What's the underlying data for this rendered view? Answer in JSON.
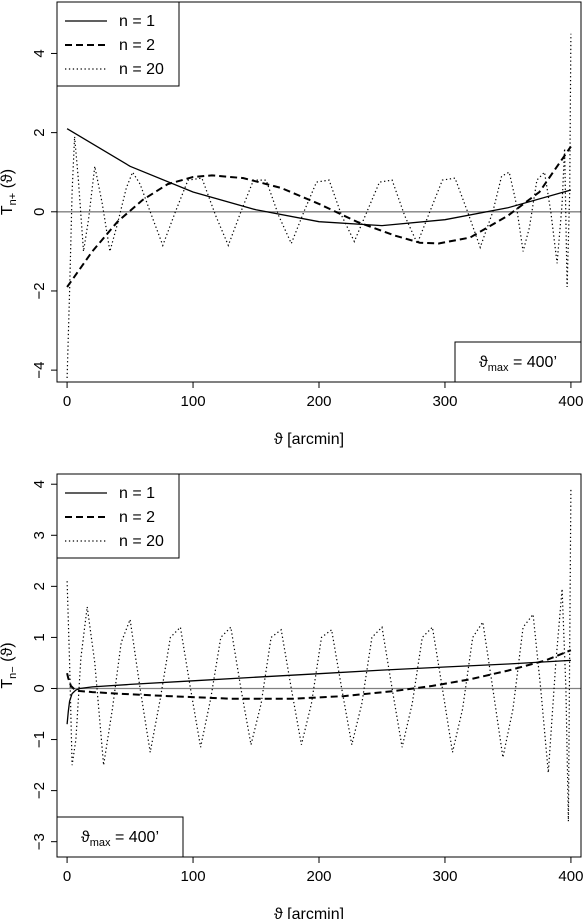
{
  "chart_data": [
    {
      "type": "line",
      "id": "top",
      "xlabel": "ϑ [arcmin]",
      "ylabel_main": "T",
      "ylabel_sub": "n+",
      "ylabel_arg": " (ϑ)",
      "xlim": [
        -8,
        408
      ],
      "ylim": [
        -4.3,
        5.3
      ],
      "xticks": [
        0,
        100,
        200,
        300,
        400
      ],
      "yticks": [
        -4,
        -2,
        0,
        2,
        4
      ],
      "xtick_labels": [
        "0",
        "100",
        "200",
        "300",
        "400"
      ],
      "ytick_labels": [
        "−4",
        "−2",
        "0",
        "2",
        "4"
      ],
      "legend": {
        "position": "top-left",
        "entries": [
          "n = 1",
          "n = 2",
          "n = 20"
        ]
      },
      "annotation": {
        "position": "bottom-right",
        "main": "ϑ",
        "sub": "max",
        "rest": " = 400’"
      },
      "series": [
        {
          "name": "n = 1",
          "style": "solid",
          "x": [
            0,
            50,
            100,
            150,
            200,
            250,
            300,
            350,
            400
          ],
          "y": [
            2.1,
            1.15,
            0.5,
            0.05,
            -0.25,
            -0.35,
            -0.2,
            0.1,
            0.55
          ]
        },
        {
          "name": "n = 2",
          "style": "dashed",
          "x": [
            0,
            20,
            40,
            60,
            80,
            100,
            115,
            140,
            170,
            200,
            230,
            260,
            280,
            295,
            320,
            350,
            375,
            400
          ],
          "y": [
            -1.9,
            -1.0,
            -0.25,
            0.3,
            0.7,
            0.88,
            0.92,
            0.85,
            0.6,
            0.2,
            -0.25,
            -0.6,
            -0.78,
            -0.8,
            -0.65,
            -0.1,
            0.5,
            1.65
          ]
        },
        {
          "name": "n = 20",
          "style": "dotted",
          "x": [
            0,
            2,
            4,
            6,
            9,
            13,
            17,
            22,
            28,
            34,
            40,
            47,
            52,
            58,
            66,
            76,
            86,
            96,
            107,
            118,
            128,
            138,
            148,
            158,
            168,
            178,
            188,
            198,
            208,
            218,
            228,
            238,
            248,
            258,
            268,
            278,
            288,
            298,
            308,
            318,
            328,
            338,
            345,
            351,
            356,
            362,
            367,
            373,
            379,
            384,
            389,
            393,
            395,
            397,
            399,
            400
          ],
          "y": [
            -4.2,
            -2.0,
            0.5,
            1.9,
            0.8,
            -1.0,
            -0.2,
            1.15,
            0.2,
            -1.0,
            -0.3,
            0.6,
            1.0,
            0.7,
            0.0,
            -0.85,
            0.0,
            0.8,
            0.85,
            -0.1,
            -0.85,
            0.0,
            0.8,
            0.8,
            -0.1,
            -0.8,
            0.0,
            0.75,
            0.8,
            -0.1,
            -0.75,
            0.0,
            0.75,
            0.8,
            -0.1,
            -0.8,
            0.0,
            0.8,
            0.85,
            0.0,
            -0.9,
            0.0,
            0.9,
            1.0,
            0.3,
            -1.0,
            -0.4,
            0.8,
            1.0,
            0.0,
            -1.3,
            0.2,
            1.6,
            -1.9,
            0.5,
            4.5
          ]
        }
      ]
    },
    {
      "type": "line",
      "id": "bottom",
      "xlabel": "ϑ [arcmin]",
      "ylabel_main": "T",
      "ylabel_sub": "n−",
      "ylabel_arg": " (ϑ)",
      "xlim": [
        -8,
        408
      ],
      "ylim": [
        -3.3,
        4.2
      ],
      "xticks": [
        0,
        100,
        200,
        300,
        400
      ],
      "yticks": [
        -3,
        -2,
        -1,
        0,
        1,
        2,
        3,
        4
      ],
      "xtick_labels": [
        "0",
        "100",
        "200",
        "300",
        "400"
      ],
      "ytick_labels": [
        "−3",
        "−2",
        "−1",
        "0",
        "1",
        "2",
        "3",
        "4"
      ],
      "legend": {
        "position": "top-left",
        "entries": [
          "n = 1",
          "n = 2",
          "n = 20"
        ]
      },
      "annotation": {
        "position": "bottom-left",
        "main": "ϑ",
        "sub": "max",
        "rest": " = 400’"
      },
      "series": [
        {
          "name": "n = 1",
          "style": "solid",
          "x": [
            0,
            1,
            2,
            4,
            7,
            10,
            20,
            50,
            100,
            150,
            200,
            250,
            300,
            350,
            400
          ],
          "y": [
            -0.7,
            -0.45,
            -0.25,
            -0.1,
            -0.03,
            0.0,
            0.03,
            0.08,
            0.15,
            0.22,
            0.29,
            0.36,
            0.42,
            0.48,
            0.55
          ]
        },
        {
          "name": "n = 2",
          "style": "dashed",
          "x": [
            0,
            1,
            3,
            6,
            10,
            20,
            40,
            80,
            130,
            180,
            220,
            260,
            290,
            320,
            350,
            380,
            400
          ],
          "y": [
            0.3,
            0.2,
            0.05,
            -0.02,
            -0.05,
            -0.07,
            -0.1,
            -0.15,
            -0.2,
            -0.2,
            -0.15,
            -0.05,
            0.05,
            0.18,
            0.35,
            0.55,
            0.75
          ]
        },
        {
          "name": "n = 20",
          "style": "dotted",
          "x": [
            0,
            2,
            4,
            7,
            11,
            16,
            22,
            29,
            36,
            43,
            50,
            58,
            66,
            74,
            82,
            90,
            98,
            106,
            114,
            122,
            130,
            138,
            146,
            154,
            162,
            170,
            178,
            186,
            194,
            202,
            210,
            218,
            226,
            234,
            242,
            250,
            258,
            266,
            274,
            282,
            290,
            298,
            306,
            314,
            322,
            330,
            338,
            346,
            354,
            362,
            370,
            376,
            382,
            388,
            393,
            396,
            398,
            400
          ],
          "y": [
            2.1,
            0.5,
            -1.5,
            -1.0,
            0.6,
            1.6,
            0.5,
            -1.5,
            -0.4,
            0.9,
            1.35,
            0.0,
            -1.25,
            -0.2,
            1.0,
            1.2,
            0.0,
            -1.15,
            -0.2,
            1.0,
            1.2,
            0.0,
            -1.1,
            -0.3,
            1.0,
            1.15,
            0.0,
            -1.1,
            -0.3,
            1.0,
            1.15,
            0.0,
            -1.1,
            -0.3,
            1.0,
            1.2,
            0.0,
            -1.15,
            -0.3,
            1.0,
            1.2,
            0.0,
            -1.25,
            -0.4,
            1.0,
            1.3,
            0.0,
            -1.35,
            -0.4,
            1.2,
            1.45,
            0.0,
            -1.65,
            0.5,
            1.95,
            0.0,
            -2.6,
            3.9
          ]
        }
      ]
    }
  ]
}
